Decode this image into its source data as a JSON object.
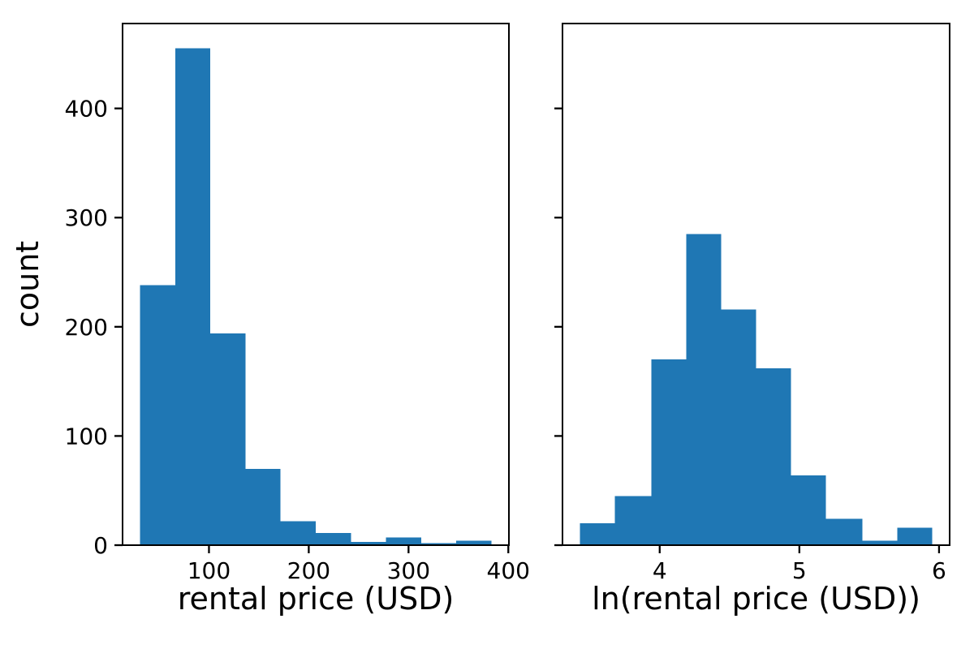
{
  "figure": {
    "background": "#ffffff"
  },
  "style": {
    "spine_color": "#000000",
    "tick_color": "#000000",
    "text_color": "#000000",
    "tick_label_fontsize": 28,
    "axis_label_fontsize": 38
  },
  "chart_data": [
    {
      "type": "bar",
      "subtype": "histogram",
      "title": "",
      "xlabel": "rental price (USD)",
      "ylabel": "count",
      "bar_color": "#1f77b4",
      "bin_edges": [
        31.0,
        66.2,
        101.4,
        136.6,
        171.8,
        207.0,
        242.2,
        277.4,
        312.6,
        347.8,
        383.0
      ],
      "counts": [
        238,
        455,
        194,
        70,
        22,
        11,
        3,
        7,
        2,
        4
      ],
      "xlim": [
        13.4,
        400.6
      ],
      "ylim": [
        0,
        477.75
      ],
      "xticks": [
        100,
        200,
        300,
        400
      ],
      "xtick_labels": [
        "100",
        "200",
        "300",
        "400"
      ],
      "yticks": [
        0,
        100,
        200,
        300,
        400
      ],
      "ytick_labels": [
        "0",
        "100",
        "200",
        "300",
        "400"
      ],
      "show_ytick_labels": true,
      "grid": false,
      "legend": "none"
    },
    {
      "type": "bar",
      "subtype": "histogram",
      "title": "",
      "xlabel": "ln(rental price (USD))",
      "ylabel": "",
      "bar_color": "#1f77b4",
      "bin_edges": [
        3.43,
        3.68,
        3.94,
        4.19,
        4.44,
        4.69,
        4.94,
        5.19,
        5.45,
        5.7,
        5.95
      ],
      "counts": [
        20,
        45,
        170,
        285,
        216,
        162,
        64,
        24,
        4,
        16
      ],
      "xlim": [
        3.304,
        6.076
      ],
      "ylim": [
        0,
        477.75
      ],
      "xticks": [
        4,
        5,
        6
      ],
      "xtick_labels": [
        "4",
        "5",
        "6"
      ],
      "yticks": [
        0,
        100,
        200,
        300,
        400
      ],
      "ytick_labels": [
        "",
        "",
        "",
        "",
        ""
      ],
      "show_ytick_labels": false,
      "grid": false,
      "legend": "none"
    }
  ]
}
